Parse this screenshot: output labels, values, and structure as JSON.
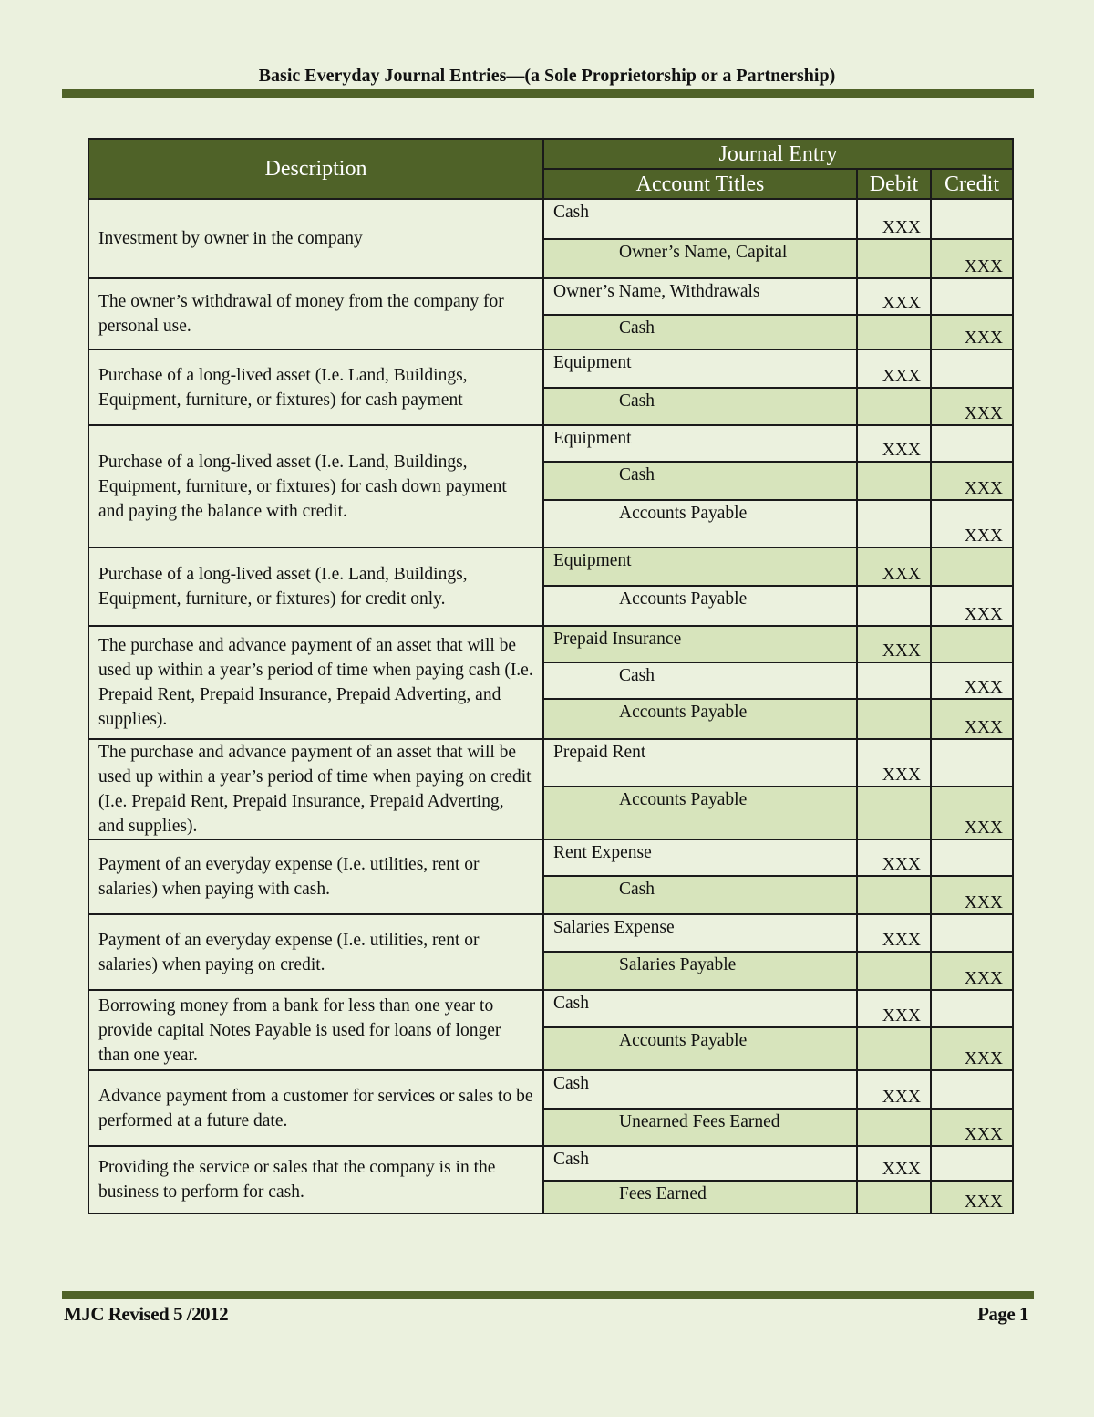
{
  "header": {
    "title": "Basic Everyday Journal Entries—(a Sole Proprietorship or a Partnership)"
  },
  "table": {
    "headers": {
      "description": "Description",
      "journal_entry": "Journal Entry",
      "account_titles": "Account Titles",
      "debit": "Debit",
      "credit": "Credit"
    },
    "entries": [
      {
        "description": "Investment by owner in the company",
        "lines": [
          {
            "account": "Cash",
            "debit": "XXX",
            "credit": ""
          },
          {
            "account": "Owner’s Name, Capital",
            "debit": "",
            "credit": "XXX"
          }
        ]
      },
      {
        "description": "The owner’s withdrawal of money from the company for personal use.",
        "lines": [
          {
            "account": "Owner’s Name, Withdrawals",
            "debit": "XXX",
            "credit": ""
          },
          {
            "account": "Cash",
            "debit": "",
            "credit": "XXX"
          }
        ]
      },
      {
        "description": "Purchase of a long-lived asset (I.e. Land, Buildings, Equipment, furniture, or fixtures) for cash payment",
        "lines": [
          {
            "account": "Equipment",
            "debit": "XXX",
            "credit": ""
          },
          {
            "account": "Cash",
            "debit": "",
            "credit": "XXX"
          }
        ]
      },
      {
        "description": "Purchase of a long-lived asset (I.e. Land, Buildings, Equipment, furniture, or fixtures) for cash down payment and paying the balance with credit.",
        "lines": [
          {
            "account": "Equipment",
            "debit": "XXX",
            "credit": ""
          },
          {
            "account": "Cash",
            "debit": "",
            "credit": "XXX"
          },
          {
            "account": "Accounts Payable",
            "debit": "",
            "credit": "XXX"
          }
        ]
      },
      {
        "description": "Purchase of a long-lived asset (I.e. Land, Buildings, Equipment, furniture, or fixtures) for credit only.",
        "lines": [
          {
            "account": "Equipment",
            "debit": "XXX",
            "credit": ""
          },
          {
            "account": "Accounts Payable",
            "debit": "",
            "credit": "XXX"
          }
        ]
      },
      {
        "description": "The purchase and advance payment of an asset that will be used up within a year’s period of time when paying cash (I.e. Prepaid Rent, Prepaid Insurance, Prepaid Adverting, and supplies).",
        "lines": [
          {
            "account": "Prepaid Insurance",
            "debit": "XXX",
            "credit": ""
          },
          {
            "account": "Cash",
            "debit": "",
            "credit": "XXX"
          },
          {
            "account": "Accounts Payable",
            "debit": "",
            "credit": "XXX"
          }
        ]
      },
      {
        "description": "The purchase and advance payment of an asset that will be used up within a year’s period of time when paying on credit (I.e. Prepaid Rent, Prepaid Insurance, Prepaid Adverting, and supplies).",
        "lines": [
          {
            "account": "Prepaid Rent",
            "debit": "XXX",
            "credit": ""
          },
          {
            "account": "Accounts Payable",
            "debit": "",
            "credit": "XXX"
          }
        ]
      },
      {
        "description": "Payment of an everyday expense (I.e. utilities, rent or salaries) when paying with cash.",
        "lines": [
          {
            "account": "Rent Expense",
            "debit": "XXX",
            "credit": ""
          },
          {
            "account": "Cash",
            "debit": "",
            "credit": "XXX"
          }
        ]
      },
      {
        "description": "Payment of an everyday expense (I.e. utilities, rent or salaries) when paying on credit.",
        "lines": [
          {
            "account": "Salaries Expense",
            "debit": "XXX",
            "credit": ""
          },
          {
            "account": "Salaries Payable",
            "debit": "",
            "credit": "XXX"
          }
        ]
      },
      {
        "description": "Borrowing money from a bank for less than one year to provide capital Notes Payable is used for loans of longer than one year.",
        "lines": [
          {
            "account": "Cash",
            "debit": "XXX",
            "credit": ""
          },
          {
            "account": "Accounts Payable",
            "debit": "",
            "credit": "XXX"
          }
        ]
      },
      {
        "description": "Advance payment from a customer for services or sales to be performed at a future date.",
        "lines": [
          {
            "account": "Cash",
            "debit": "XXX",
            "credit": ""
          },
          {
            "account": "Unearned Fees Earned",
            "debit": "",
            "credit": "XXX"
          }
        ]
      },
      {
        "description": "Providing the service or sales that the company is in the business to perform for cash.",
        "lines": [
          {
            "account": "Cash",
            "debit": "XXX",
            "credit": ""
          },
          {
            "account": "Fees Earned",
            "debit": "",
            "credit": "XXX"
          }
        ]
      }
    ]
  },
  "footer": {
    "left": "MJC Revised 5 /2012",
    "right": "Page 1"
  },
  "colors": {
    "header_fill": "#4f6228",
    "page_bg": "#ebf1de",
    "alt_row": "#d7e4bc"
  }
}
